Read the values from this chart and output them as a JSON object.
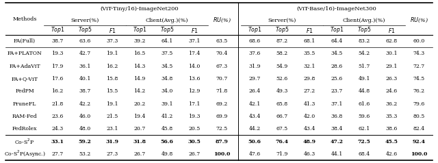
{
  "title_left": "(ViT-Tiny/16)-ImageNet200",
  "title_right": "(ViT-Base/16)-ImageNet300",
  "methods": [
    "FA(Full)",
    "FA+PLATON",
    "FA+AdaViT",
    "FA+Q-ViT",
    "FedPM",
    "PruneFL",
    "RAM-Fed",
    "FedRolex",
    "Co-S$^2$P",
    "Co-S$^2$P(Async.)"
  ],
  "left_data": [
    [
      38.7,
      63.6,
      37.3,
      39.2,
      64.1,
      37.1,
      63.5
    ],
    [
      19.3,
      42.7,
      19.1,
      16.5,
      37.5,
      17.4,
      70.4
    ],
    [
      17.9,
      36.1,
      16.2,
      14.3,
      34.5,
      14.0,
      67.3
    ],
    [
      17.6,
      40.1,
      15.8,
      14.9,
      34.8,
      13.6,
      70.7
    ],
    [
      16.2,
      38.7,
      15.5,
      14.2,
      34.0,
      12.9,
      71.8
    ],
    [
      21.8,
      42.2,
      19.1,
      20.2,
      39.1,
      17.1,
      69.2
    ],
    [
      23.6,
      46.0,
      21.5,
      19.4,
      41.2,
      19.3,
      69.9
    ],
    [
      24.3,
      48.0,
      23.1,
      20.7,
      45.8,
      20.5,
      72.5
    ],
    [
      33.1,
      59.2,
      31.9,
      31.8,
      56.6,
      30.5,
      87.9
    ],
    [
      27.7,
      53.2,
      27.3,
      26.7,
      49.8,
      26.7,
      100.0
    ]
  ],
  "right_data": [
    [
      68.6,
      87.2,
      68.1,
      64.4,
      83.2,
      62.8,
      60.0
    ],
    [
      37.6,
      58.2,
      35.5,
      34.5,
      54.2,
      30.1,
      74.3
    ],
    [
      31.9,
      54.9,
      32.1,
      28.6,
      51.7,
      29.1,
      72.7
    ],
    [
      29.7,
      52.6,
      29.8,
      25.6,
      49.1,
      26.3,
      74.5
    ],
    [
      26.4,
      49.3,
      27.2,
      23.7,
      44.8,
      24.6,
      76.2
    ],
    [
      42.1,
      65.8,
      41.3,
      37.1,
      61.6,
      36.2,
      79.6
    ],
    [
      43.4,
      66.7,
      42.0,
      36.8,
      59.6,
      35.3,
      80.5
    ],
    [
      44.2,
      67.5,
      43.4,
      38.4,
      62.1,
      38.6,
      82.4
    ],
    [
      50.6,
      76.4,
      48.9,
      47.2,
      72.5,
      45.5,
      92.4
    ],
    [
      47.6,
      71.9,
      46.3,
      44.1,
      68.4,
      42.6,
      100.0
    ]
  ],
  "bold_left": {
    "8": [
      0,
      1,
      2,
      3,
      4,
      5,
      6
    ],
    "9": [
      6
    ]
  },
  "bold_right": {
    "8": [
      0,
      1,
      2,
      3,
      4,
      5,
      6
    ],
    "9": [
      6
    ]
  },
  "figsize": [
    6.4,
    2.38
  ],
  "dpi": 100
}
